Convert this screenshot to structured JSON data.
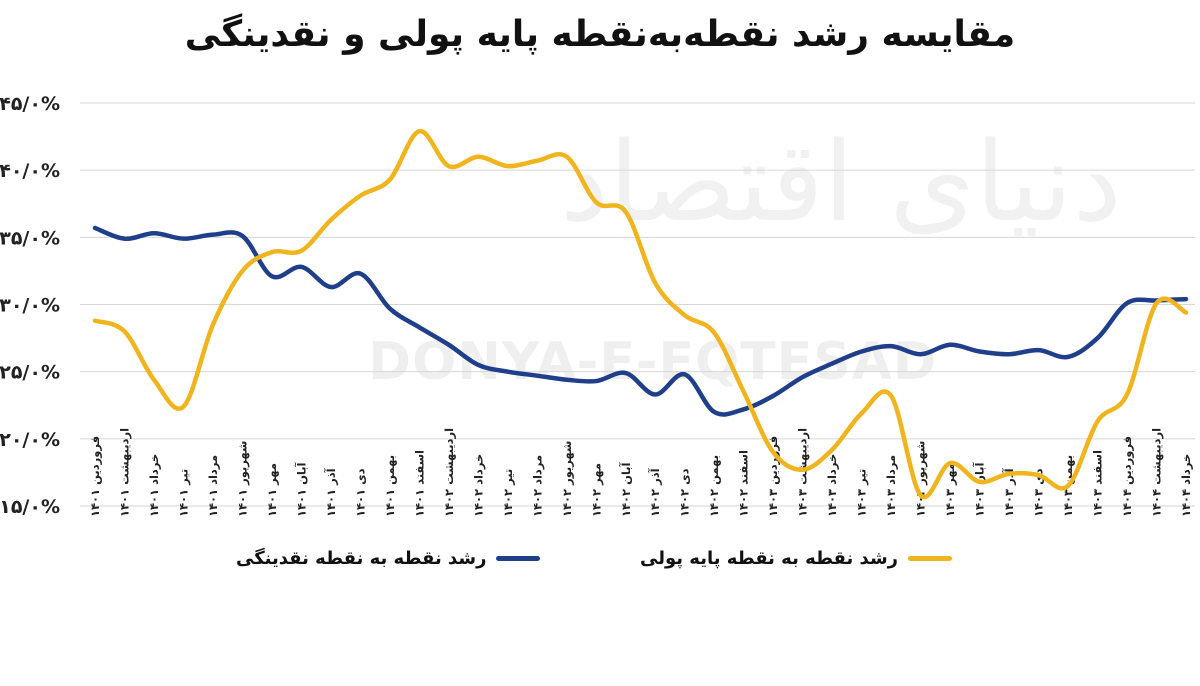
{
  "title": "مقایسه رشد نقطه‌به‌نقطه پایه پولی و نقدینگی",
  "watermark": {
    "logo": "دنیای اقتصاد",
    "text": "DONYA-E-EQTESAD"
  },
  "chart_data": {
    "type": "line",
    "title": "مقایسه رشد نقطه‌به‌نقطه پایه پولی و نقدینگی",
    "ylim": [
      15,
      45
    ],
    "y_ticks": [
      15,
      20,
      25,
      30,
      35,
      40,
      45
    ],
    "y_tick_labels": [
      "۱۵/۰%",
      "۲۰/۰%",
      "۲۵/۰%",
      "۳۰/۰%",
      "۳۵/۰%",
      "۴۰/۰%",
      "۴۵/۰%"
    ],
    "grid": true,
    "legend_position": "bottom",
    "categories": [
      "فروردین ۱۴۰۱",
      "اردیبهشت ۱۴۰۱",
      "خرداد ۱۴۰۱",
      "تیر ۱۴۰۱",
      "مرداد ۱۴۰۱",
      "شهریور ۱۴۰۱",
      "مهر ۱۴۰۱",
      "آبان ۱۴۰۱",
      "آذر ۱۴۰۱",
      "دی ۱۴۰۱",
      "بهمن ۱۴۰۱",
      "اسفند ۱۴۰۱",
      "اردیبهشت ۱۴۰۲",
      "خرداد ۱۴۰۲",
      "تیر ۱۴۰۲",
      "مرداد ۱۴۰۲",
      "شهریور ۱۴۰۲",
      "مهر ۱۴۰۲",
      "آبان ۱۴۰۲",
      "آذر ۱۴۰۲",
      "دی ۱۴۰۲",
      "بهمن ۱۴۰۲",
      "اسفند ۱۴۰۲",
      "فروردین ۱۴۰۳",
      "اردیبهشت ۱۴۰۳",
      "خرداد ۱۴۰۳",
      "تیر ۱۴۰۳",
      "مرداد ۱۴۰۳",
      "شهریور ۱۴۰۳",
      "مهر ۱۴۰۳",
      "آبان ۱۴۰۳",
      "آذر ۱۴۰۳",
      "دی ۱۴۰۳",
      "بهمن ۱۴۰۳",
      "اسفند ۱۴۰۳",
      "فروردین ۱۴۰۴",
      "اردیبهشت ۱۴۰۴",
      "خرداد ۱۴۰۴"
    ],
    "series": [
      {
        "name": "رشد نقطه به نقطه نقدینگی",
        "color": "#1f3f8a",
        "values": [
          35.7,
          34.9,
          35.3,
          34.9,
          35.2,
          35.1,
          32.1,
          32.8,
          31.3,
          32.3,
          29.7,
          28.3,
          27.0,
          25.5,
          25.0,
          24.7,
          24.4,
          24.3,
          24.9,
          23.3,
          24.8,
          22.0,
          22.2,
          23.2,
          24.6,
          25.6,
          26.5,
          26.9,
          26.3,
          27.0,
          26.5,
          26.3,
          26.6,
          26.1,
          27.5,
          30.1,
          30.3,
          30.4
        ]
      },
      {
        "name": "رشد نقطه به نقطه پایه پولی",
        "color": "#f0b41e",
        "values": [
          28.8,
          28.0,
          24.4,
          22.4,
          28.5,
          32.5,
          33.9,
          34.0,
          36.3,
          38.1,
          39.3,
          42.9,
          40.3,
          41.0,
          40.3,
          40.7,
          41.0,
          37.6,
          36.9,
          31.6,
          29.2,
          27.9,
          23.5,
          19.0,
          17.7,
          19.2,
          21.9,
          23.2,
          15.8,
          18.2,
          16.8,
          17.4,
          17.3,
          16.5,
          21.3,
          23.3,
          30.1,
          29.4
        ]
      }
    ]
  }
}
